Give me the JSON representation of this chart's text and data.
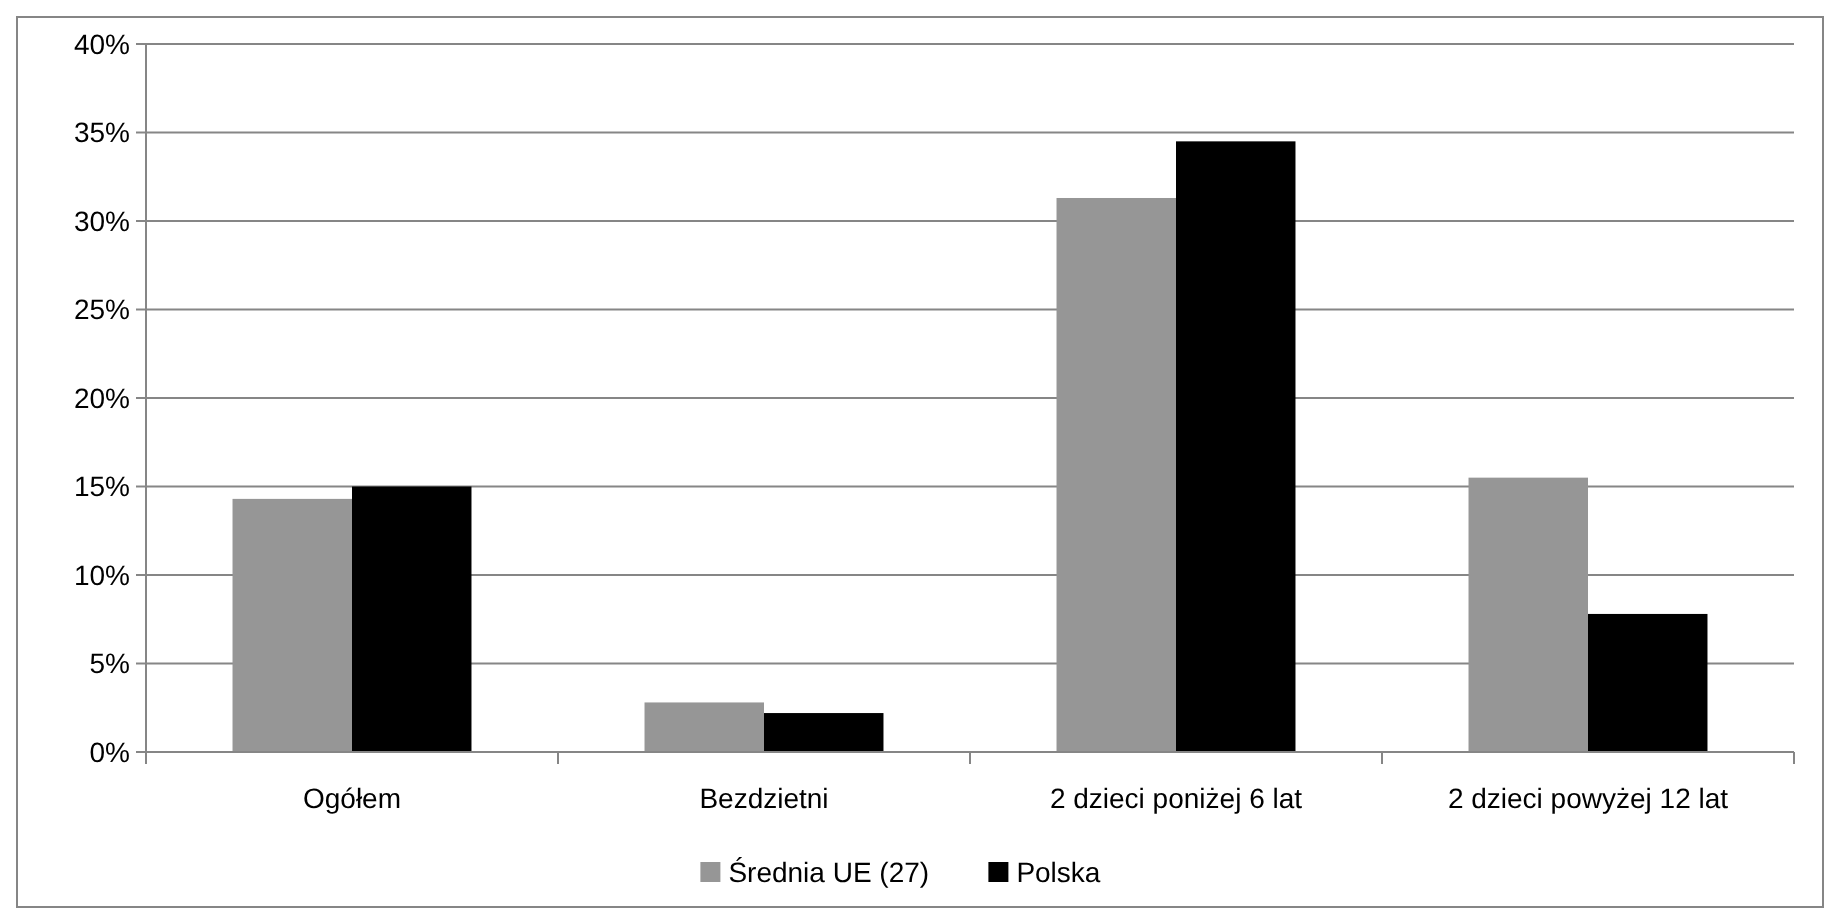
{
  "chart_data": {
    "type": "bar",
    "categories": [
      "Ogółem",
      "Bezdzietni",
      "2 dzieci poniżej 6 lat",
      "2 dzieci powyżej 12 lat"
    ],
    "series": [
      {
        "name": "Średnia UE (27)",
        "color": "#969696",
        "values": [
          14.3,
          2.8,
          31.3,
          15.5
        ]
      },
      {
        "name": "Polska",
        "color": "#000000",
        "values": [
          15.0,
          2.2,
          34.5,
          7.8
        ]
      }
    ],
    "ylim": [
      0,
      40
    ],
    "yticks": [
      {
        "value": 0,
        "label": "0%"
      },
      {
        "value": 5,
        "label": "5%"
      },
      {
        "value": 10,
        "label": "10%"
      },
      {
        "value": 15,
        "label": "15%"
      },
      {
        "value": 20,
        "label": "20%"
      },
      {
        "value": 25,
        "label": "25%"
      },
      {
        "value": 30,
        "label": "30%"
      },
      {
        "value": 35,
        "label": "35%"
      },
      {
        "value": 40,
        "label": "40%"
      }
    ],
    "grid": "y",
    "legend": "bottom"
  }
}
